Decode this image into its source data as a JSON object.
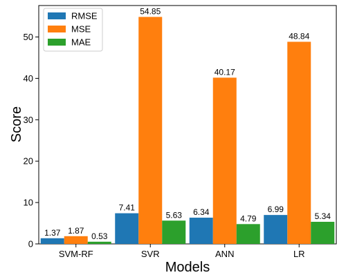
{
  "chart_data": {
    "type": "bar",
    "title": "",
    "xlabel": "Models",
    "ylabel": "Score",
    "categories": [
      "SVM-RF",
      "SVR",
      "ANN",
      "LR"
    ],
    "series": [
      {
        "name": "RMSE",
        "color": "#1f77b4",
        "values": [
          1.37,
          7.41,
          6.34,
          6.99
        ],
        "labels": [
          "1.37",
          "7.41",
          "6.34",
          "6.99"
        ]
      },
      {
        "name": "MSE",
        "color": "#ff7f0e",
        "values": [
          1.87,
          54.85,
          40.17,
          48.84
        ],
        "labels": [
          "1.87",
          "54.85",
          "40.17",
          "48.84"
        ]
      },
      {
        "name": "MAE",
        "color": "#2ca02c",
        "values": [
          0.53,
          5.63,
          4.79,
          5.34
        ],
        "labels": [
          "0.53",
          "5.63",
          "4.79",
          "5.34"
        ]
      }
    ],
    "ylim": [
      0,
      57.6
    ],
    "yticks": [
      0,
      10,
      20,
      30,
      40,
      50
    ],
    "ytick_labels": [
      "0",
      "10",
      "20",
      "30",
      "40",
      "50"
    ],
    "grid": false,
    "legend_position": "top-left"
  }
}
